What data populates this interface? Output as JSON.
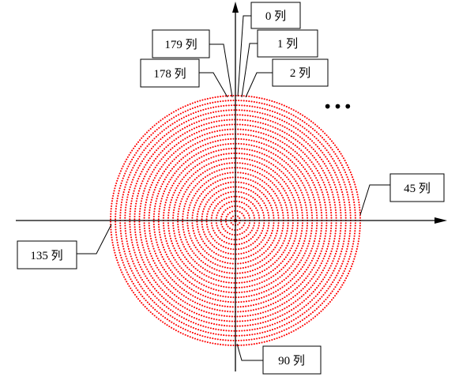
{
  "diagram": {
    "dot_color": "#ff0000",
    "axis_color": "#000000",
    "ring_count": 26,
    "column_count": 180,
    "labels": {
      "col0": "0 列",
      "col1": "1 列",
      "col2": "2 列",
      "col179": "179 列",
      "col178": "178 列",
      "col45": "45 列",
      "col90": "90 列",
      "col135": "135 列"
    },
    "ellipsis": "•••"
  }
}
